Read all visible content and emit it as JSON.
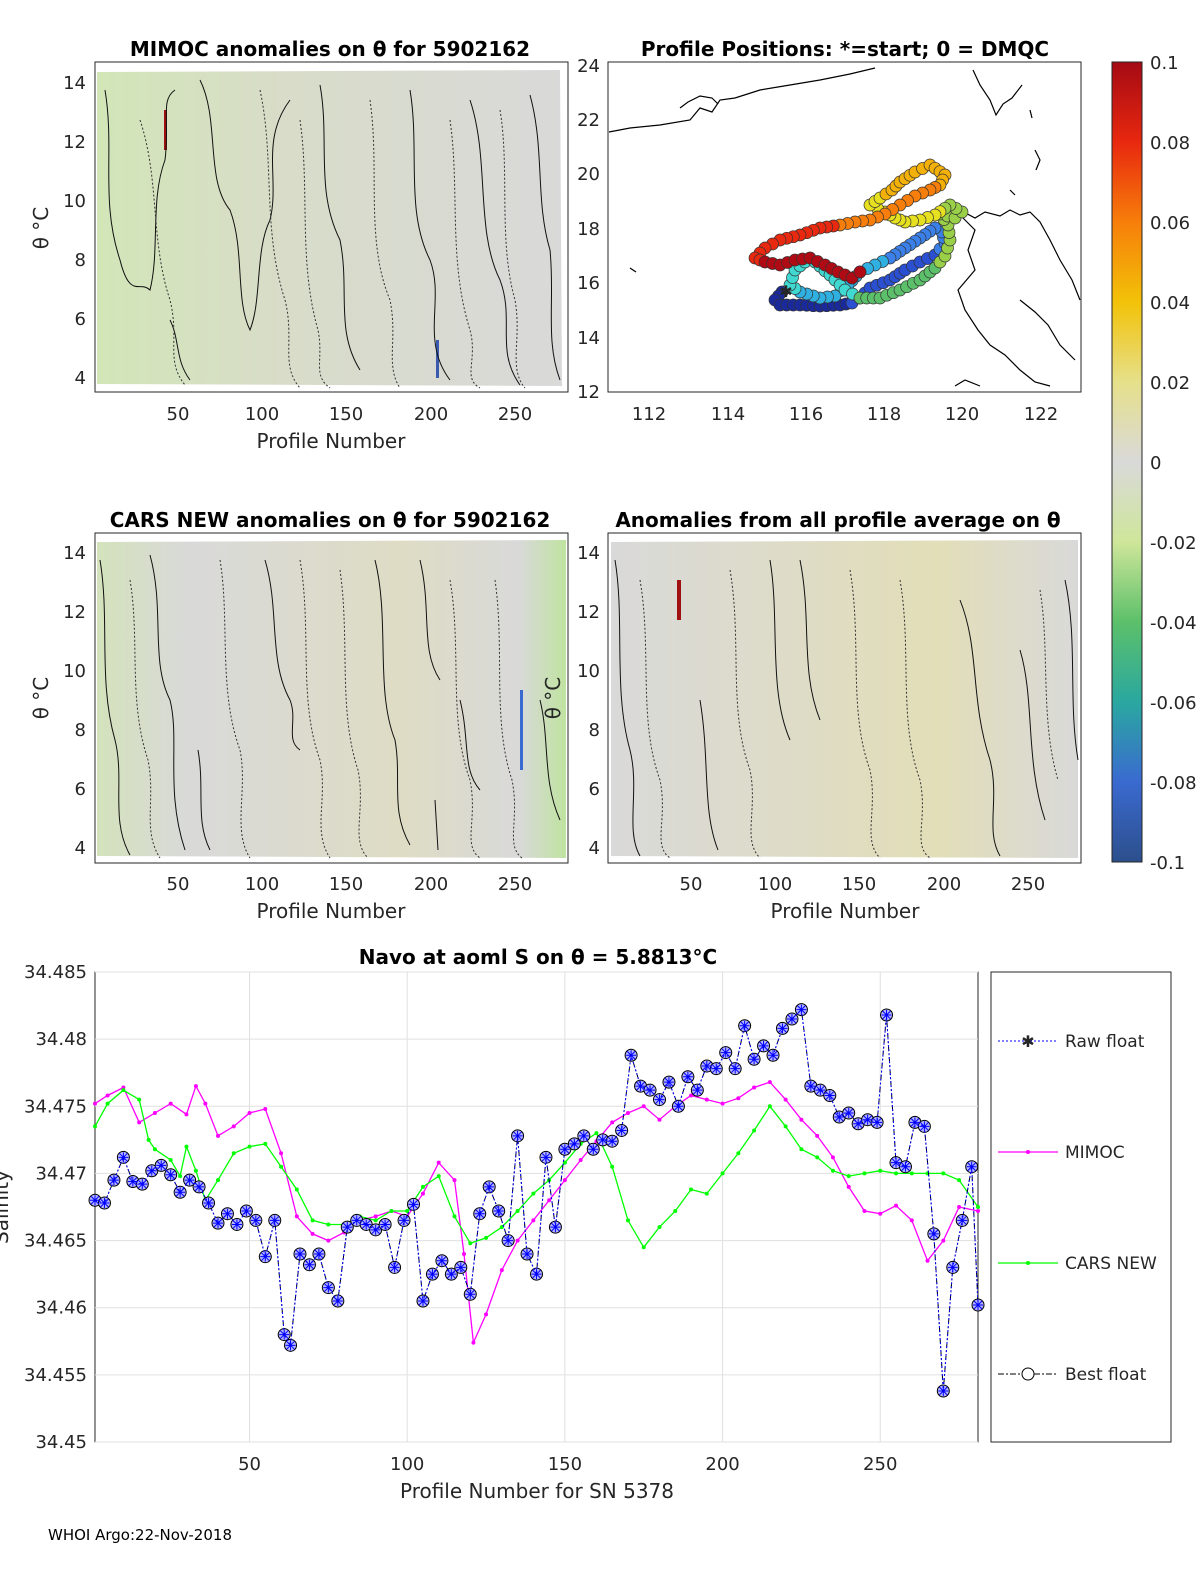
{
  "footer": "WHOI Argo:22-Nov-2018",
  "colors": {
    "mimoc": "#ff00ff",
    "cars": "#00ff00",
    "raw": "#0000ff",
    "best": "#000000",
    "marker_face": "#b4b4ff",
    "grid": "#e0e0e0",
    "coast": "#000000"
  },
  "panels": {
    "mimoc_anom": {
      "title": "MIMOC anomalies on θ  for 5902162",
      "xlabel": "Profile Number",
      "ylabel": "θ °C",
      "xticks": [
        "50",
        "100",
        "150",
        "200",
        "250"
      ],
      "yticks": [
        "4",
        "6",
        "8",
        "10",
        "12",
        "14"
      ]
    },
    "positions": {
      "title": "Profile Positions: *=start; 0 = DMQC",
      "xticks": [
        "112",
        "114",
        "116",
        "118",
        "120",
        "122"
      ],
      "yticks": [
        "12",
        "14",
        "16",
        "18",
        "20",
        "22",
        "24"
      ]
    },
    "cars_anom": {
      "title": "CARS NEW anomalies on θ for 5902162",
      "xlabel": "Profile Number",
      "ylabel": "θ °C",
      "xticks": [
        "50",
        "100",
        "150",
        "200",
        "250"
      ],
      "yticks": [
        "4",
        "6",
        "8",
        "10",
        "12",
        "14"
      ],
      "overlap_label": "θ °C"
    },
    "avg_anom": {
      "title": "Anomalies from all profile average on θ",
      "xlabel": "Profile Number",
      "xticks": [
        "50",
        "100",
        "150",
        "200",
        "250"
      ],
      "yticks": [
        "4",
        "6",
        "8",
        "10",
        "12",
        "14"
      ]
    }
  },
  "colorbar": {
    "labels": [
      "0.1",
      "0.08",
      "0.06",
      "0.04",
      "0.02",
      "0",
      "-0.02",
      "-0.04",
      "-0.06",
      "-0.08",
      "-0.1"
    ]
  },
  "chart_data": {
    "type": "line",
    "title": "Navo at aoml S on θ = 5.8813°C",
    "xlabel": "Profile Number for SN 5378",
    "ylabel": "Salinity",
    "xlim": [
      1,
      281
    ],
    "ylim": [
      34.45,
      34.485
    ],
    "xticks": [
      "50",
      "100",
      "150",
      "200",
      "250"
    ],
    "yticks": [
      "34.45",
      "34.455",
      "34.46",
      "34.465",
      "34.47",
      "34.475",
      "34.48",
      "34.485"
    ],
    "grid": true,
    "legend": {
      "position": "right",
      "entries": [
        "Raw float",
        "MIMOC",
        "CARS NEW",
        "Best float"
      ]
    },
    "series": [
      {
        "name": "MIMOC",
        "x": [
          1,
          5,
          10,
          15,
          20,
          25,
          30,
          33,
          36,
          40,
          45,
          50,
          55,
          60,
          65,
          70,
          75,
          80,
          85,
          90,
          95,
          100,
          105,
          110,
          115,
          118,
          121,
          125,
          130,
          135,
          140,
          145,
          150,
          155,
          160,
          165,
          170,
          175,
          180,
          185,
          190,
          195,
          200,
          205,
          210,
          215,
          220,
          225,
          230,
          235,
          240,
          245,
          250,
          255,
          260,
          265,
          270,
          275,
          281
        ],
        "values": [
          34.4752,
          34.4758,
          34.4764,
          34.4738,
          34.4745,
          34.4752,
          34.4744,
          34.4765,
          34.4752,
          34.4728,
          34.4735,
          34.4745,
          34.4748,
          34.4715,
          34.4668,
          34.4655,
          34.465,
          34.4656,
          34.4665,
          34.4668,
          34.4672,
          34.4668,
          34.4685,
          34.4708,
          34.4695,
          34.464,
          34.4574,
          34.4595,
          34.4628,
          34.465,
          34.4665,
          34.468,
          34.4695,
          34.471,
          34.4724,
          34.4738,
          34.4745,
          34.475,
          34.474,
          34.475,
          34.4758,
          34.4755,
          34.4752,
          34.4756,
          34.4764,
          34.4768,
          34.4755,
          34.474,
          34.4728,
          34.4712,
          34.469,
          34.4672,
          34.467,
          34.4676,
          34.4665,
          34.4635,
          34.465,
          34.4675,
          34.4672
        ]
      },
      {
        "name": "CARS NEW",
        "x": [
          1,
          5,
          10,
          15,
          18,
          20,
          25,
          28,
          30,
          33,
          36,
          40,
          45,
          50,
          55,
          60,
          65,
          70,
          75,
          80,
          85,
          90,
          95,
          100,
          105,
          110,
          115,
          120,
          125,
          130,
          135,
          140,
          145,
          150,
          155,
          160,
          165,
          170,
          175,
          180,
          185,
          190,
          195,
          200,
          205,
          210,
          215,
          220,
          225,
          230,
          235,
          240,
          245,
          250,
          255,
          260,
          265,
          270,
          275,
          281
        ],
        "values": [
          34.4735,
          34.4752,
          34.4762,
          34.4755,
          34.4725,
          34.4718,
          34.471,
          34.4698,
          34.472,
          34.4702,
          34.468,
          34.4695,
          34.4715,
          34.472,
          34.4722,
          34.4705,
          34.4688,
          34.4665,
          34.4662,
          34.4662,
          34.4668,
          34.4665,
          34.4672,
          34.4672,
          34.469,
          34.4698,
          34.4668,
          34.4648,
          34.4652,
          34.466,
          34.4672,
          34.4685,
          34.4695,
          34.4708,
          34.4722,
          34.473,
          34.4705,
          34.4665,
          34.4645,
          34.466,
          34.4672,
          34.4688,
          34.4685,
          34.47,
          34.4715,
          34.4732,
          34.475,
          34.4735,
          34.4718,
          34.4712,
          34.4702,
          34.4698,
          34.47,
          34.4702,
          34.47,
          34.47,
          34.47,
          34.47,
          34.4695,
          34.4675
        ]
      },
      {
        "name": "Best float",
        "x": [
          1,
          4,
          7,
          10,
          13,
          16,
          19,
          22,
          25,
          28,
          31,
          34,
          37,
          40,
          43,
          46,
          49,
          52,
          55,
          58,
          61,
          63,
          66,
          69,
          72,
          75,
          78,
          81,
          84,
          87,
          90,
          93,
          96,
          99,
          102,
          105,
          108,
          111,
          114,
          117,
          120,
          123,
          126,
          129,
          132,
          135,
          138,
          141,
          144,
          147,
          150,
          153,
          156,
          159,
          162,
          165,
          168,
          171,
          174,
          177,
          180,
          183,
          186,
          189,
          192,
          195,
          198,
          201,
          204,
          207,
          210,
          213,
          216,
          219,
          222,
          225,
          228,
          231,
          234,
          237,
          240,
          243,
          246,
          249,
          252,
          255,
          258,
          261,
          264,
          267,
          270,
          273,
          276,
          279,
          281
        ],
        "values": [
          34.468,
          34.4678,
          34.4695,
          34.4712,
          34.4694,
          34.4692,
          34.4702,
          34.4706,
          34.4699,
          34.4686,
          34.4695,
          34.469,
          34.4678,
          34.4663,
          34.467,
          34.4662,
          34.4672,
          34.4665,
          34.4638,
          34.4665,
          34.458,
          34.4572,
          34.464,
          34.4632,
          34.464,
          34.4615,
          34.4605,
          34.466,
          34.4665,
          34.4662,
          34.4658,
          34.4662,
          34.463,
          34.4665,
          34.4677,
          34.4605,
          34.4625,
          34.4635,
          34.4625,
          34.463,
          34.461,
          34.467,
          34.469,
          34.4672,
          34.465,
          34.4728,
          34.464,
          34.4625,
          34.4712,
          34.466,
          34.4718,
          34.4722,
          34.4728,
          34.4718,
          34.4725,
          34.4724,
          34.4732,
          34.4788,
          34.4765,
          34.4762,
          34.4755,
          34.4768,
          34.475,
          34.4772,
          34.4762,
          34.478,
          34.4778,
          34.479,
          34.4778,
          34.481,
          34.4785,
          34.4795,
          34.4788,
          34.4808,
          34.4815,
          34.4822,
          34.4765,
          34.4762,
          34.4758,
          34.4742,
          34.4745,
          34.4737,
          34.474,
          34.4738,
          34.4818,
          34.4708,
          34.4705,
          34.4738,
          34.4735,
          34.4655,
          34.4538,
          34.463,
          34.4665,
          34.4705,
          34.4602
        ]
      },
      {
        "name": "Raw float",
        "x": [
          1,
          4,
          7,
          10,
          13,
          16,
          19,
          22,
          25,
          28,
          31,
          34,
          37,
          40,
          43,
          46,
          49,
          52,
          55,
          58,
          61,
          63,
          66,
          69,
          72,
          75,
          78,
          81,
          84,
          87,
          90,
          93,
          96,
          99,
          102,
          105,
          108,
          111,
          114,
          117,
          120,
          123,
          126,
          129,
          132,
          135,
          138,
          141,
          144,
          147,
          150,
          153,
          156,
          159,
          162,
          165,
          168,
          171,
          174,
          177,
          180,
          183,
          186,
          189,
          192,
          195,
          198,
          201,
          204,
          207,
          210,
          213,
          216,
          219,
          222,
          225,
          228,
          231,
          234,
          237,
          240,
          243,
          246,
          249,
          252,
          255,
          258,
          261,
          264,
          267,
          270,
          273,
          276,
          279,
          281
        ],
        "values": [
          34.468,
          34.4678,
          34.4695,
          34.4712,
          34.4694,
          34.4692,
          34.4702,
          34.4706,
          34.4699,
          34.4686,
          34.4695,
          34.469,
          34.4678,
          34.4663,
          34.467,
          34.4662,
          34.4672,
          34.4665,
          34.4638,
          34.4665,
          34.458,
          34.4572,
          34.464,
          34.4632,
          34.464,
          34.4615,
          34.4605,
          34.466,
          34.4665,
          34.4662,
          34.4658,
          34.4662,
          34.463,
          34.4665,
          34.4677,
          34.4605,
          34.4625,
          34.4635,
          34.4625,
          34.463,
          34.461,
          34.467,
          34.469,
          34.4672,
          34.465,
          34.4728,
          34.464,
          34.4625,
          34.4712,
          34.466,
          34.4718,
          34.4722,
          34.4728,
          34.4718,
          34.4725,
          34.4724,
          34.4732,
          34.4788,
          34.4765,
          34.4762,
          34.4755,
          34.4768,
          34.475,
          34.4772,
          34.4762,
          34.478,
          34.4778,
          34.479,
          34.4778,
          34.481,
          34.4785,
          34.4795,
          34.4788,
          34.4808,
          34.4815,
          34.4822,
          34.4765,
          34.4762,
          34.4758,
          34.4742,
          34.4745,
          34.4737,
          34.474,
          34.4738,
          34.4818,
          34.4708,
          34.4705,
          34.4738,
          34.4735,
          34.4655,
          34.4538,
          34.463,
          34.4665,
          34.4705,
          34.4602
        ]
      }
    ]
  }
}
